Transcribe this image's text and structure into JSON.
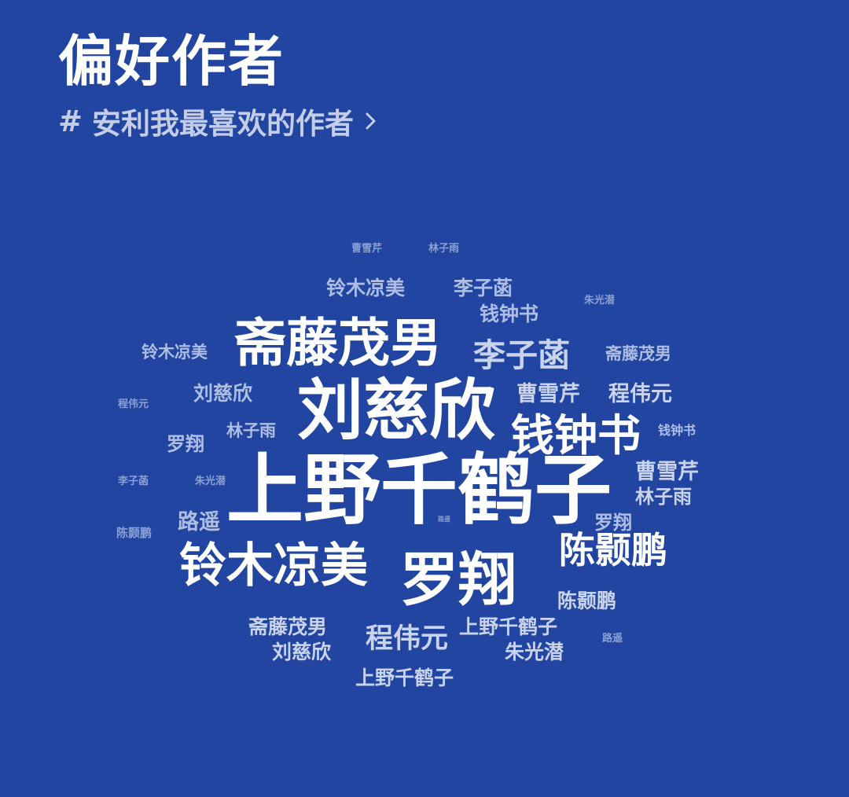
{
  "header": {
    "title": "偏好作者",
    "subtitle_hash": "#",
    "subtitle": "安利我最喜欢的作者",
    "chevron_icon": "chevron-right-icon"
  },
  "colors": {
    "background": "#2145a1",
    "title": "#ffffff",
    "subtitle": "#c3cde6"
  },
  "word_cloud": [
    {
      "text": "曹雪芹",
      "weight": 1
    },
    {
      "text": "林子雨",
      "weight": 1
    },
    {
      "text": "铃木凉美",
      "weight": 3
    },
    {
      "text": "李子菡",
      "weight": 3
    },
    {
      "text": "朱光潜",
      "weight": 1
    },
    {
      "text": "钱钟书",
      "weight": 3
    },
    {
      "text": "斋藤茂男",
      "weight": 8
    },
    {
      "text": "李子菡",
      "weight": 5
    },
    {
      "text": "铃木凉美",
      "weight": 3
    },
    {
      "text": "斋藤茂男",
      "weight": 3
    },
    {
      "text": "刘慈欣",
      "weight": 3
    },
    {
      "text": "曹雪芹",
      "weight": 4
    },
    {
      "text": "程伟元",
      "weight": 4
    },
    {
      "text": "程伟元",
      "weight": 1
    },
    {
      "text": "刘慈欣",
      "weight": 9
    },
    {
      "text": "钱钟书",
      "weight": 7
    },
    {
      "text": "钱钟书",
      "weight": 2
    },
    {
      "text": "林子雨",
      "weight": 3
    },
    {
      "text": "罗翔",
      "weight": 3
    },
    {
      "text": "曹雪芹",
      "weight": 4
    },
    {
      "text": "李子菡",
      "weight": 1
    },
    {
      "text": "朱光潜",
      "weight": 1
    },
    {
      "text": "上野千鹤子",
      "weight": 10
    },
    {
      "text": "林子雨",
      "weight": 4
    },
    {
      "text": "路遥",
      "weight": 3
    },
    {
      "text": "路遥",
      "weight": 1
    },
    {
      "text": "罗翔",
      "weight": 3
    },
    {
      "text": "陈颢鹏",
      "weight": 1
    },
    {
      "text": "陈颢鹏",
      "weight": 7
    },
    {
      "text": "铃木凉美",
      "weight": 8
    },
    {
      "text": "罗翔",
      "weight": 9
    },
    {
      "text": "陈颢鹏",
      "weight": 4
    },
    {
      "text": "斋藤茂男",
      "weight": 4
    },
    {
      "text": "上野千鹤子",
      "weight": 4
    },
    {
      "text": "路遥",
      "weight": 1
    },
    {
      "text": "程伟元",
      "weight": 5
    },
    {
      "text": "刘慈欣",
      "weight": 4
    },
    {
      "text": "朱光潜",
      "weight": 4
    },
    {
      "text": "上野千鹤子",
      "weight": 4
    }
  ]
}
